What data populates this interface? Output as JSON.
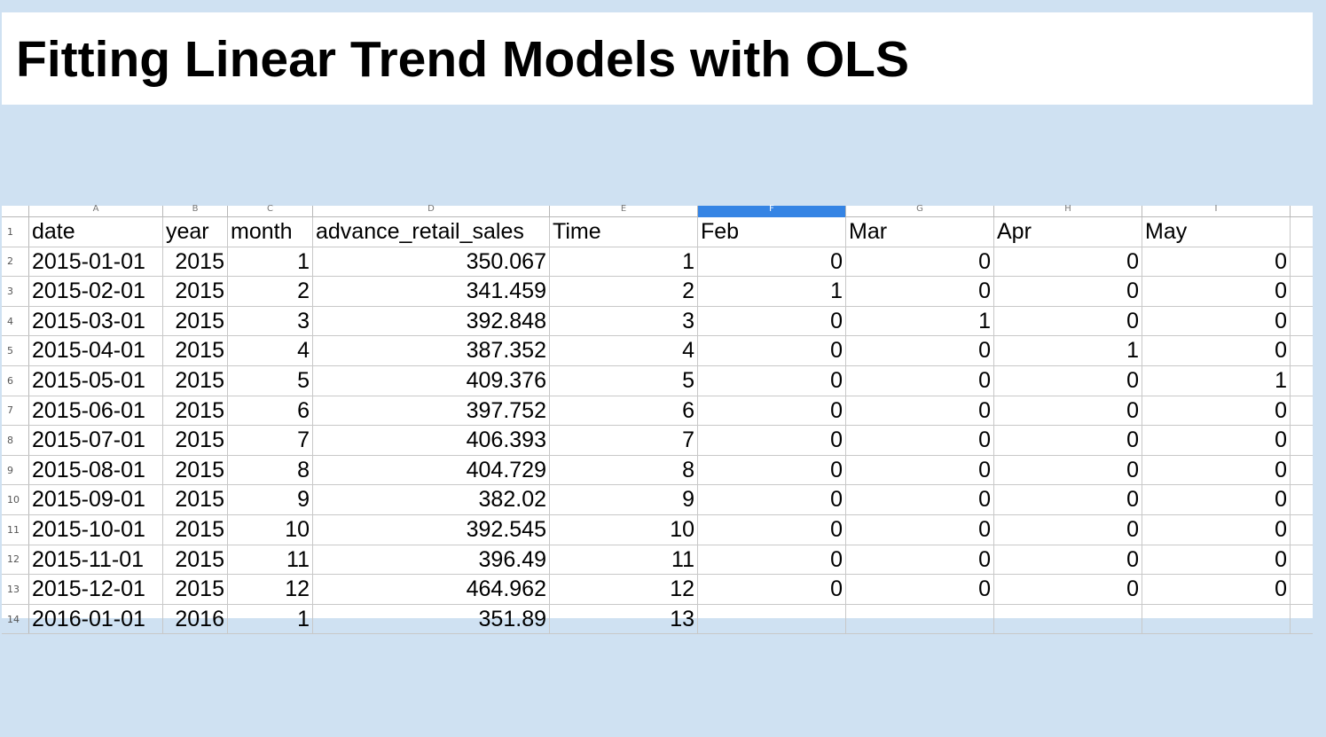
{
  "slide": {
    "title": "Fitting Linear Trend Models with OLS"
  },
  "spreadsheet": {
    "column_letters": [
      "A",
      "B",
      "C",
      "D",
      "E",
      "F",
      "G",
      "H",
      "I"
    ],
    "selected_column": "F",
    "header_row": {
      "number": "1",
      "cells": [
        "date",
        "year",
        "month",
        "advance_retail_sales",
        "Time",
        "Feb",
        "Mar",
        "Apr",
        "May"
      ]
    },
    "rows": [
      {
        "number": "2",
        "cells": [
          "2015-01-01",
          "2015",
          "1",
          "350.067",
          "1",
          "0",
          "0",
          "0",
          "0"
        ]
      },
      {
        "number": "3",
        "cells": [
          "2015-02-01",
          "2015",
          "2",
          "341.459",
          "2",
          "1",
          "0",
          "0",
          "0"
        ]
      },
      {
        "number": "4",
        "cells": [
          "2015-03-01",
          "2015",
          "3",
          "392.848",
          "3",
          "0",
          "1",
          "0",
          "0"
        ]
      },
      {
        "number": "5",
        "cells": [
          "2015-04-01",
          "2015",
          "4",
          "387.352",
          "4",
          "0",
          "0",
          "1",
          "0"
        ]
      },
      {
        "number": "6",
        "cells": [
          "2015-05-01",
          "2015",
          "5",
          "409.376",
          "5",
          "0",
          "0",
          "0",
          "1"
        ]
      },
      {
        "number": "7",
        "cells": [
          "2015-06-01",
          "2015",
          "6",
          "397.752",
          "6",
          "0",
          "0",
          "0",
          "0"
        ]
      },
      {
        "number": "8",
        "cells": [
          "2015-07-01",
          "2015",
          "7",
          "406.393",
          "7",
          "0",
          "0",
          "0",
          "0"
        ]
      },
      {
        "number": "9",
        "cells": [
          "2015-08-01",
          "2015",
          "8",
          "404.729",
          "8",
          "0",
          "0",
          "0",
          "0"
        ]
      },
      {
        "number": "10",
        "cells": [
          "2015-09-01",
          "2015",
          "9",
          "382.02",
          "9",
          "0",
          "0",
          "0",
          "0"
        ]
      },
      {
        "number": "11",
        "cells": [
          "2015-10-01",
          "2015",
          "10",
          "392.545",
          "10",
          "0",
          "0",
          "0",
          "0"
        ]
      },
      {
        "number": "12",
        "cells": [
          "2015-11-01",
          "2015",
          "11",
          "396.49",
          "11",
          "0",
          "0",
          "0",
          "0"
        ]
      },
      {
        "number": "13",
        "cells": [
          "2015-12-01",
          "2015",
          "12",
          "464.962",
          "12",
          "0",
          "0",
          "0",
          "0"
        ]
      },
      {
        "number": "14",
        "cells": [
          "2016-01-01",
          "2016",
          "1",
          "351.89",
          "13",
          "",
          "",
          "",
          ""
        ]
      }
    ]
  },
  "colors": {
    "background": "#cfe1f2",
    "selected_column_header": "#3584e4"
  }
}
